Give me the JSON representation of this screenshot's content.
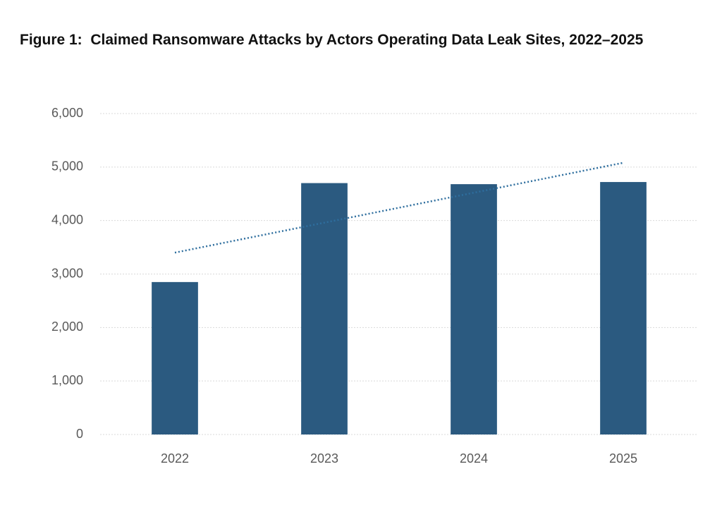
{
  "chart_data": {
    "type": "bar",
    "title": "Figure 1:  Claimed Ransomware Attacks by Actors Operating Data Leak Sites, 2022–2025",
    "categories": [
      "2022",
      "2023",
      "2024",
      "2025"
    ],
    "values": [
      2850,
      4700,
      4680,
      4720
    ],
    "color": "#2b5a80",
    "trend": {
      "color": "#2e6e9e",
      "values": [
        3400,
        3960,
        4520,
        5080
      ]
    },
    "ylim": [
      0,
      6000
    ],
    "yticks": [
      0,
      {
        "value": 1000,
        "label": "1,000"
      },
      {
        "value": 2000,
        "label": "2,000"
      },
      {
        "value": 3000,
        "label": "3,000"
      },
      {
        "value": 4000,
        "label": "4,000"
      },
      {
        "value": 5000,
        "label": "5,000"
      },
      {
        "value": 6000,
        "label": "6,000"
      }
    ],
    "grid": true
  }
}
